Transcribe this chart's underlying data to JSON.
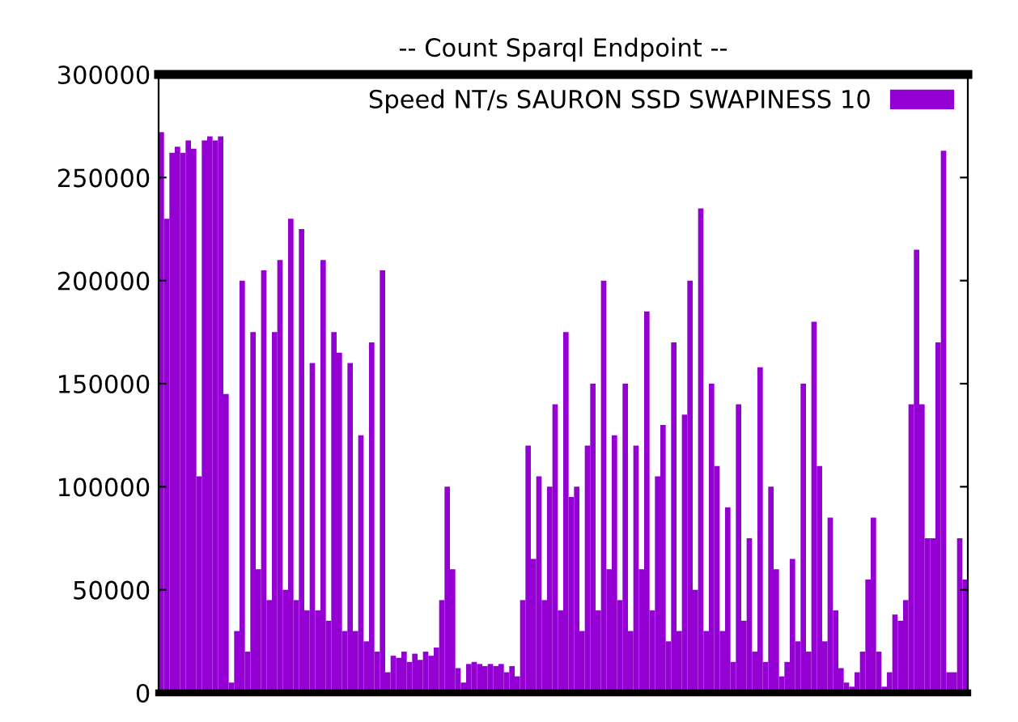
{
  "chart_data": {
    "type": "bar",
    "title": "-- Count Sparql Endpoint --",
    "categories": [
      null,
      null,
      null,
      null,
      null,
      null,
      null,
      null,
      null,
      null,
      null,
      null,
      null,
      null,
      null,
      null,
      null,
      null,
      null,
      null,
      null,
      null,
      null,
      null,
      null,
      null,
      null,
      null,
      null,
      null,
      null,
      null,
      null,
      null,
      null,
      null,
      null,
      null,
      null,
      null,
      null,
      null,
      null,
      null,
      null,
      null,
      null,
      null,
      null,
      null,
      null,
      null,
      null,
      null,
      null,
      null,
      null,
      null,
      null,
      null,
      null,
      null,
      null,
      null,
      null,
      null,
      null,
      null,
      null,
      null,
      null,
      null,
      null,
      null,
      null,
      null,
      null,
      null,
      null,
      null,
      null,
      null,
      null,
      null,
      null,
      null,
      null,
      null,
      null,
      null,
      null,
      null,
      null,
      null,
      null,
      null,
      null,
      null,
      null,
      null,
      null,
      null,
      null,
      null,
      null,
      null,
      null,
      null,
      null,
      null,
      null,
      null,
      null,
      null,
      null,
      null,
      null,
      null,
      null,
      null,
      null,
      null,
      null,
      null,
      null,
      null,
      null,
      null,
      null,
      null,
      null,
      null,
      null,
      null,
      null,
      null,
      null,
      null,
      null,
      null,
      null,
      null,
      null,
      null,
      null,
      null,
      null,
      null,
      null,
      null
    ],
    "series": [
      {
        "name": "Speed NT/s SAURON SSD SWAPINESS 10",
        "color": "#9400d3",
        "values": [
          272000,
          230000,
          262000,
          265000,
          262000,
          268000,
          264000,
          105000,
          268000,
          270000,
          268000,
          270000,
          145000,
          5000,
          30000,
          200000,
          20000,
          175000,
          60000,
          205000,
          45000,
          175000,
          210000,
          50000,
          230000,
          45000,
          225000,
          40000,
          160000,
          40000,
          210000,
          35000,
          175000,
          165000,
          30000,
          160000,
          30000,
          125000,
          25000,
          170000,
          20000,
          205000,
          10000,
          18000,
          17000,
          20000,
          15000,
          19000,
          16000,
          20000,
          18000,
          22000,
          45000,
          100000,
          60000,
          12000,
          5000,
          14000,
          15000,
          14000,
          13000,
          14000,
          13000,
          14000,
          10000,
          13000,
          8000,
          45000,
          120000,
          65000,
          105000,
          45000,
          100000,
          140000,
          40000,
          175000,
          95000,
          100000,
          30000,
          120000,
          150000,
          40000,
          200000,
          60000,
          125000,
          45000,
          150000,
          30000,
          120000,
          60000,
          185000,
          40000,
          105000,
          130000,
          25000,
          170000,
          30000,
          135000,
          200000,
          50000,
          235000,
          30000,
          150000,
          110000,
          30000,
          90000,
          15000,
          140000,
          35000,
          75000,
          20000,
          158000,
          15000,
          100000,
          60000,
          8000,
          15000,
          65000,
          25000,
          150000,
          20000,
          180000,
          110000,
          25000,
          85000,
          40000,
          12000,
          5000,
          3000,
          10000,
          20000,
          55000,
          85000,
          20000,
          3000,
          10000,
          38000,
          35000,
          45000,
          140000,
          215000,
          140000,
          75000,
          75000,
          170000,
          263000,
          10000,
          10000,
          75000,
          55000
        ]
      }
    ],
    "ylim": [
      0,
      300000
    ],
    "yticks": [
      0,
      50000,
      100000,
      150000,
      200000,
      250000,
      300000
    ],
    "grid": false,
    "legend": "top right"
  }
}
